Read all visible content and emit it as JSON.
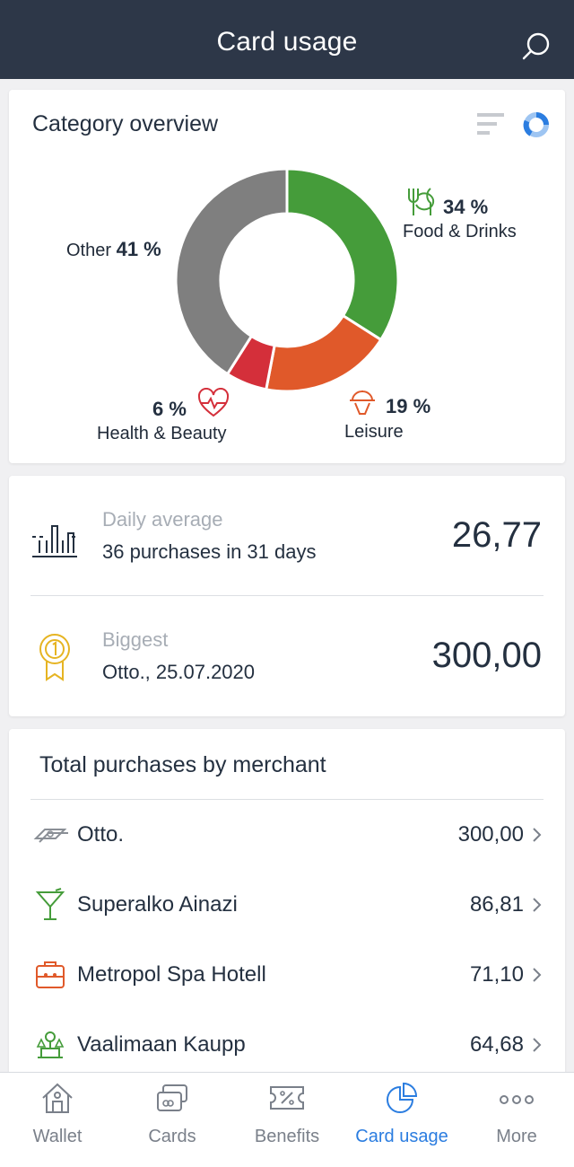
{
  "header": {
    "title": "Card usage",
    "search_icon": "search-icon"
  },
  "category": {
    "title": "Category overview",
    "view_icons": [
      "list-view-icon",
      "donut-view-icon"
    ],
    "items": [
      {
        "name": "Food & Drinks",
        "percent": "34 %",
        "value": 34,
        "color": "#459c3a",
        "icon": "fork-knife-icon"
      },
      {
        "name": "Leisure",
        "percent": "19 %",
        "value": 19,
        "color": "#e0592a",
        "icon": "waiter-cloche-icon"
      },
      {
        "name": "Health & Beauty",
        "percent": "6 %",
        "value": 6,
        "color": "#d42f3a",
        "icon": "heart-pulse-icon"
      },
      {
        "name": "Other",
        "percent": "41 %",
        "value": 41,
        "color": "#7f7f7f",
        "icon": ""
      }
    ]
  },
  "stats": {
    "daily": {
      "label": "Daily average",
      "sub": "36 purchases in 31 days",
      "value": "26,77",
      "icon": "bar-chart-icon"
    },
    "biggest": {
      "label": "Biggest",
      "sub": "Otto., 25.07.2020",
      "value": "300,00",
      "icon": "medal-icon"
    }
  },
  "merchants": {
    "title": "Total purchases by merchant",
    "rows": [
      {
        "name": "Otto.",
        "amount": "300,00",
        "icon": "money-bill-icon",
        "color": "#8a8f96"
      },
      {
        "name": "Superalko Ainazi",
        "amount": "86,81",
        "icon": "cocktail-icon",
        "color": "#459c3a"
      },
      {
        "name": "Metropol Spa Hotell",
        "amount": "71,10",
        "icon": "suitcase-icon",
        "color": "#e0592a"
      },
      {
        "name": "Vaalimaan Kaupp",
        "amount": "64,68",
        "icon": "scale-icon",
        "color": "#459c3a"
      }
    ]
  },
  "tabs": [
    {
      "label": "Wallet",
      "icon": "home-icon",
      "active": false
    },
    {
      "label": "Cards",
      "icon": "cards-icon",
      "active": false
    },
    {
      "label": "Benefits",
      "icon": "coupon-icon",
      "active": false
    },
    {
      "label": "Card usage",
      "icon": "pie-chart-icon",
      "active": true
    },
    {
      "label": "More",
      "icon": "more-dots-icon",
      "active": false
    }
  ],
  "colors": {
    "header": "#2d3748",
    "accent": "#2b7de0"
  }
}
